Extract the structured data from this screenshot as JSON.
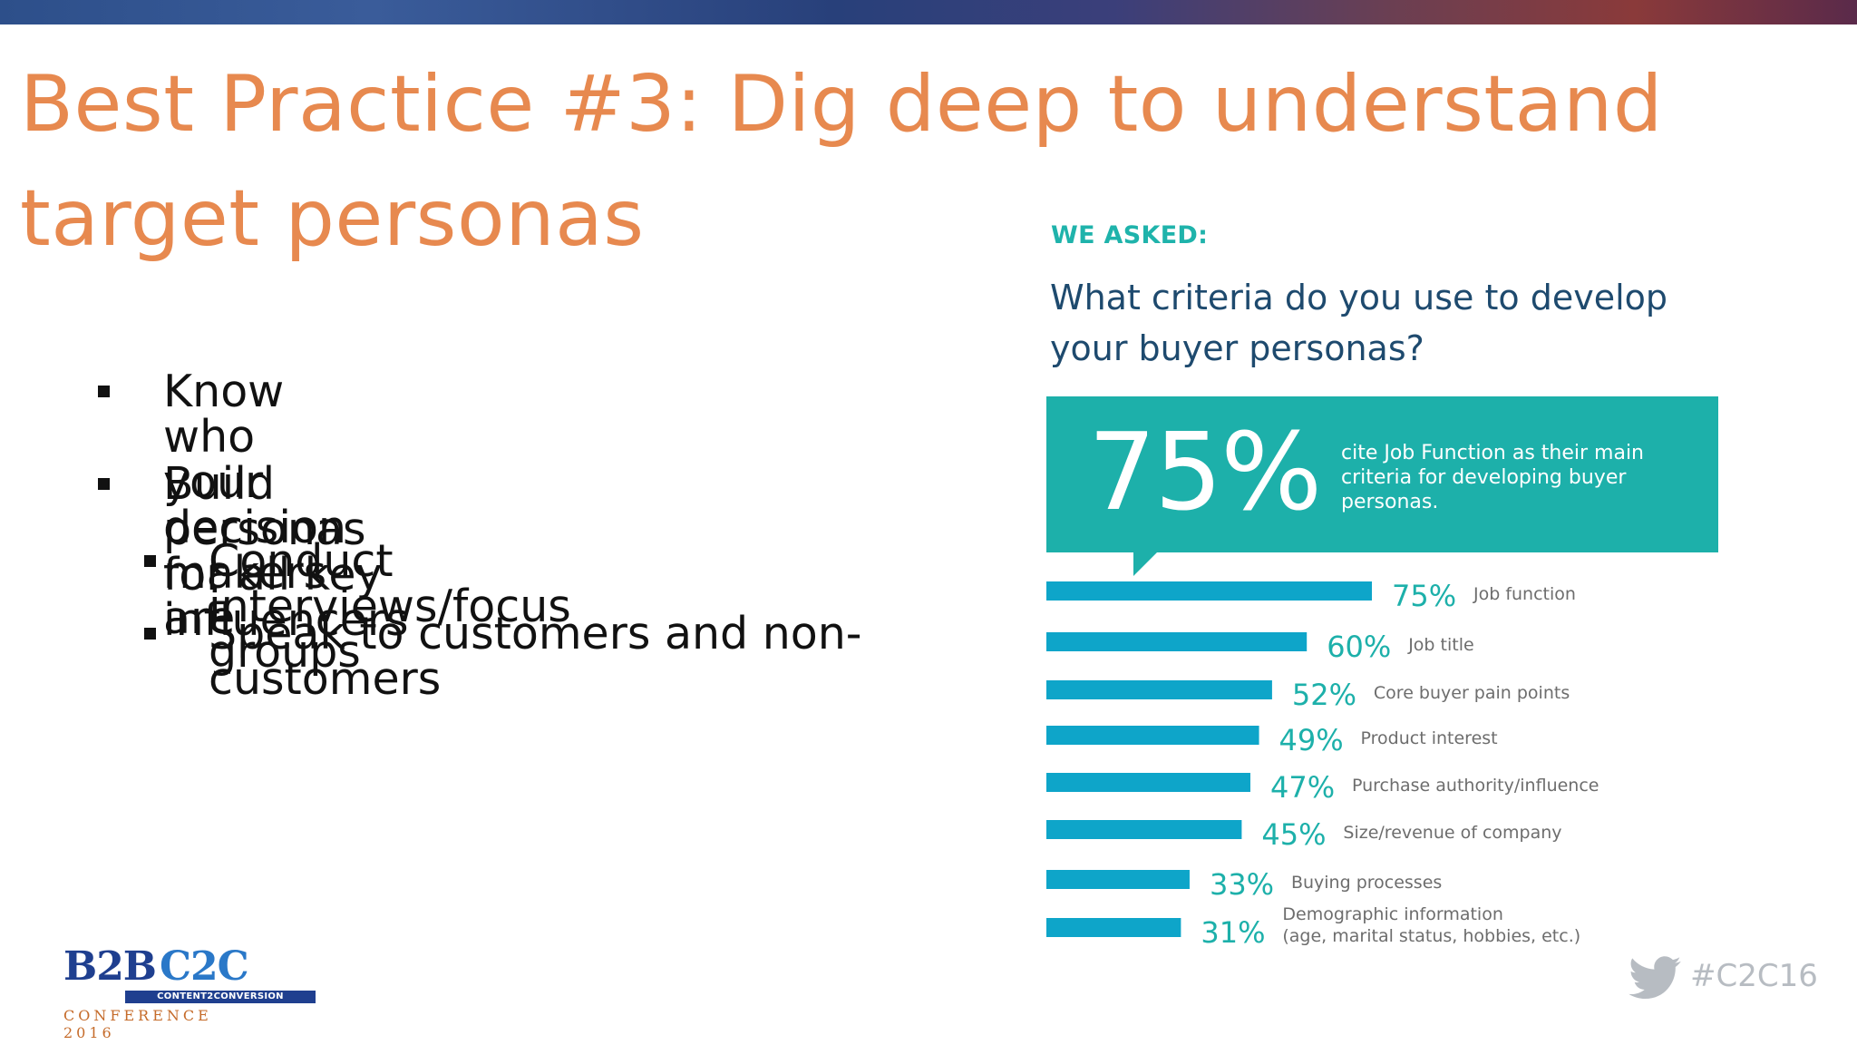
{
  "slide": {
    "title": "Best Practice #3: Dig deep to understand target personas",
    "bullets": [
      {
        "text": "Know who your decision makers are",
        "level": 1
      },
      {
        "text": "Build personas for all key influencers",
        "level": 1
      },
      {
        "text": "Conduct interviews/focus groups",
        "level": 2
      },
      {
        "text": "Speak to customers and non-customers",
        "level": 2
      }
    ],
    "hashtag": "#C2C16",
    "logo": {
      "line1_left": "B2B",
      "line1_right": "C2C",
      "bar_text": "CONTENT2CONVERSION",
      "line3": "CONFERENCE 2016"
    }
  },
  "infographic": {
    "we_asked": "WE ASKED:",
    "question": "What criteria do you use to develop your buyer personas?",
    "callout_pct": "75%",
    "callout_text": "cite Job Function as their main criteria for developing buyer personas."
  },
  "chart_data": {
    "type": "bar",
    "orientation": "horizontal",
    "categories": [
      "Job function",
      "Job title",
      "Core buyer pain points",
      "Product interest",
      "Purchase authority/influence",
      "Size/revenue of company",
      "Buying processes",
      "Demographic information (age, marital status, hobbies, etc.)"
    ],
    "values": [
      75,
      60,
      52,
      49,
      47,
      45,
      33,
      31
    ],
    "value_labels": [
      "75%",
      "60%",
      "52%",
      "49%",
      "47%",
      "45%",
      "33%",
      "31%"
    ],
    "bar_color": "#0ea5c9",
    "label_color": "#1db0aa",
    "category_color": "#6d6d6d"
  },
  "colors": {
    "title": "#e7894f",
    "accent_teal": "#1db0aa",
    "question": "#1e4a6e"
  }
}
